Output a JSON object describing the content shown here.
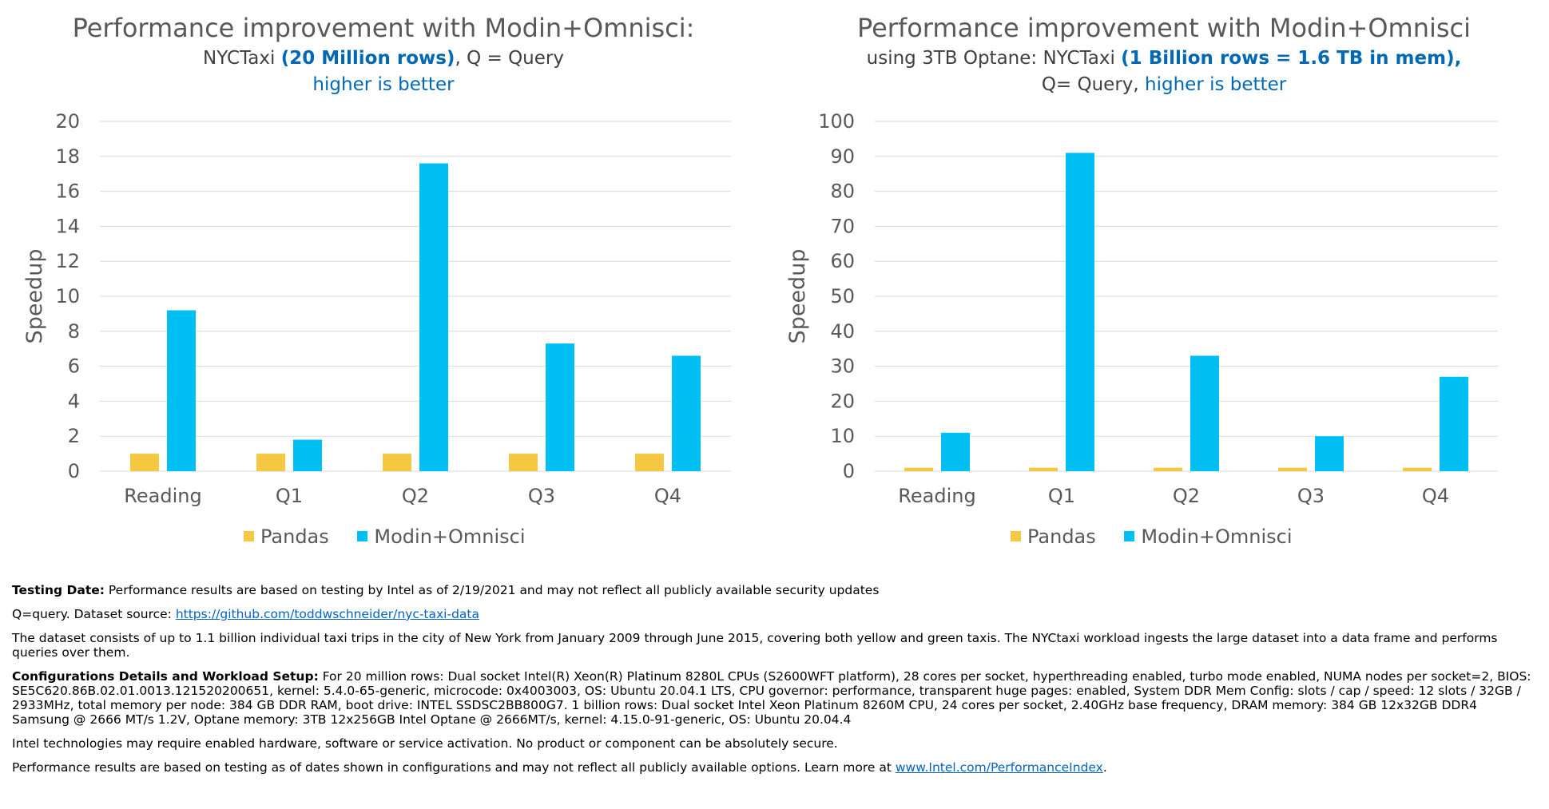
{
  "colors": {
    "pandas": "#f5c842",
    "modin": "#00c0f3",
    "grid": "#d9d9d9"
  },
  "chart_data": [
    {
      "type": "bar",
      "title": "Performance improvement with Modin+Omnisci:",
      "subtitle_line1": {
        "pre": "NYCTaxi ",
        "bold": "(20 Million rows)",
        "post": ", Q = Query"
      },
      "subtitle_line2": {
        "pre": "",
        "blue": "higher is better"
      },
      "ylabel": "Speedup",
      "ylim": [
        0,
        20
      ],
      "yticks": [
        0,
        2,
        4,
        6,
        8,
        10,
        12,
        14,
        16,
        18,
        20
      ],
      "categories": [
        "Reading",
        "Q1",
        "Q2",
        "Q3",
        "Q4"
      ],
      "series": [
        {
          "name": "Pandas",
          "values": [
            1,
            1,
            1,
            1,
            1
          ]
        },
        {
          "name": "Modin+Omnisci",
          "values": [
            9.2,
            1.8,
            17.6,
            7.3,
            6.6
          ]
        }
      ],
      "grid": true,
      "legend": "bottom"
    },
    {
      "type": "bar",
      "title": "Performance improvement with Modin+Omnisci",
      "subtitle_line1": {
        "pre": "using 3TB Optane: NYCTaxi ",
        "bold": "(1 Billion rows = 1.6 TB in mem),",
        "post": ""
      },
      "subtitle_line2": {
        "pre": "Q= Query, ",
        "blue": "higher is better"
      },
      "ylabel": "Speedup",
      "ylim": [
        0,
        100
      ],
      "yticks": [
        0,
        10,
        20,
        30,
        40,
        50,
        60,
        70,
        80,
        90,
        100
      ],
      "categories": [
        "Reading",
        "Q1",
        "Q2",
        "Q3",
        "Q4"
      ],
      "series": [
        {
          "name": "Pandas",
          "values": [
            1,
            1,
            1,
            1,
            1
          ]
        },
        {
          "name": "Modin+Omnisci",
          "values": [
            11,
            91,
            33,
            10,
            27
          ]
        }
      ],
      "grid": true,
      "legend": "bottom"
    }
  ],
  "notes": {
    "testing_label": "Testing Date:",
    "testing_text": " Performance results are based on testing by Intel as of 2/19/2021 and may not reflect all publicly available security updates",
    "source_text": "Q=query. Dataset source: ",
    "source_link": "https://github.com/toddwschneider/nyc-taxi-data",
    "dataset_text": "The dataset consists of up to 1.1 billion individual taxi trips in the city of New York from January 2009 through June 2015, covering both yellow and green taxis. The NYCtaxi workload ingests the large dataset into a data frame and performs queries over them.",
    "config_label": "Configurations Details and Workload Setup:",
    "config_text": " For 20 million rows: Dual socket Intel(R) Xeon(R) Platinum 8280L CPUs (S2600WFT platform), 28 cores per socket, hyperthreading enabled, turbo mode enabled, NUMA nodes per socket=2, BIOS: SE5C620.86B.02.01.0013.121520200651, kernel: 5.4.0-65-generic, microcode: 0x4003003, OS: Ubuntu 20.04.1 LTS, CPU governor: performance, transparent huge pages: enabled, System DDR Mem Config: slots / cap / speed: 12 slots / 32GB / 2933MHz, total memory per node: 384 GB DDR RAM, boot drive: INTEL SSDSC2BB800G7. 1 billion rows: Dual socket Intel Xeon Platinum 8260M CPU, 24 cores per socket, 2.40GHz base frequency, DRAM memory: 384 GB 12x32GB DDR4 Samsung @ 2666 MT/s 1.2V, Optane memory: 3TB 12x256GB Intel Optane @ 2666MT/s, kernel: 4.15.0-91-generic, OS: Ubuntu 20.04.4",
    "security_text": "Intel technologies may require enabled hardware, software or service activation. No product or component can be absolutely secure.",
    "perf_text": "Performance results are based on testing as of dates shown in configurations and may not reflect all publicly available options. Learn more at ",
    "perf_link": "www.Intel.com/PerformanceIndex",
    "perf_end": "."
  }
}
